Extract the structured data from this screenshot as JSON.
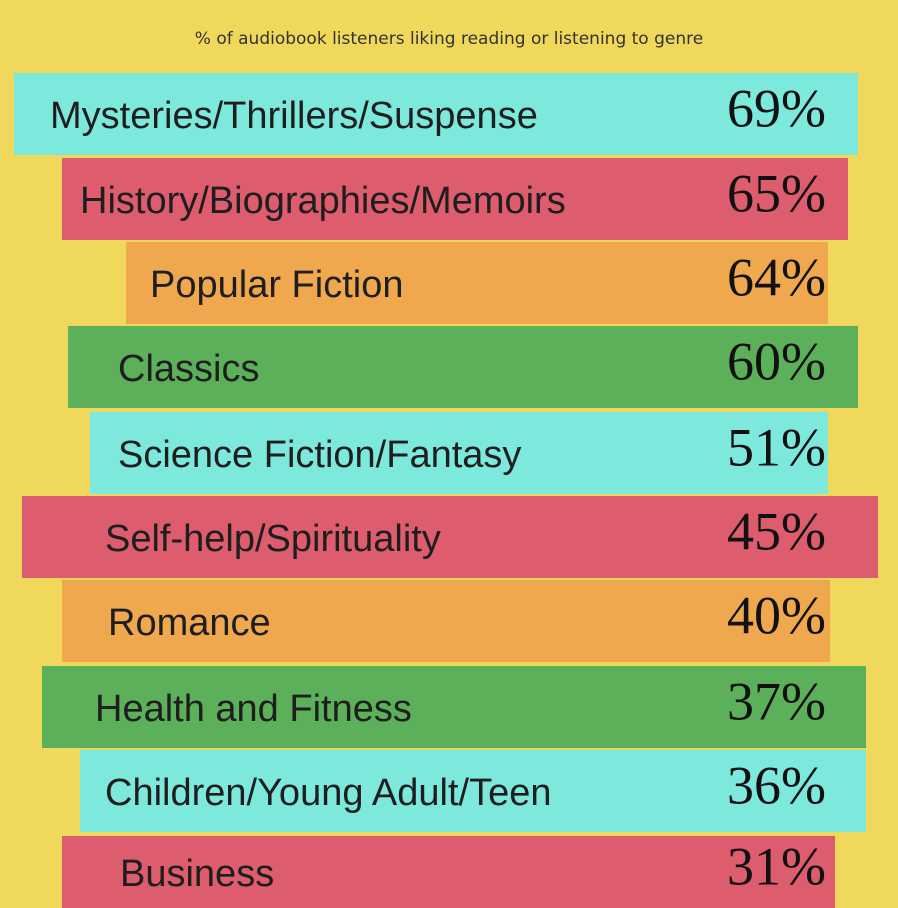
{
  "infographic": {
    "title": "% of audiobook listeners liking reading or listening to genre",
    "items": [
      {
        "label": "Mysteries/Thrillers/Suspense",
        "value": "69%"
      },
      {
        "label": "History/Biographies/Memoirs",
        "value": "65%"
      },
      {
        "label": "Popular Fiction",
        "value": "64%"
      },
      {
        "label": "Classics",
        "value": "60%"
      },
      {
        "label": "Science Fiction/Fantasy",
        "value": "51%"
      },
      {
        "label": "Self-help/Spirituality",
        "value": "45%"
      },
      {
        "label": "Romance",
        "value": "40%"
      },
      {
        "label": "Health and Fitness",
        "value": "37%"
      },
      {
        "label": "Children/Young Adult/Teen",
        "value": "36%"
      },
      {
        "label": "Business",
        "value": "31%"
      }
    ]
  }
}
